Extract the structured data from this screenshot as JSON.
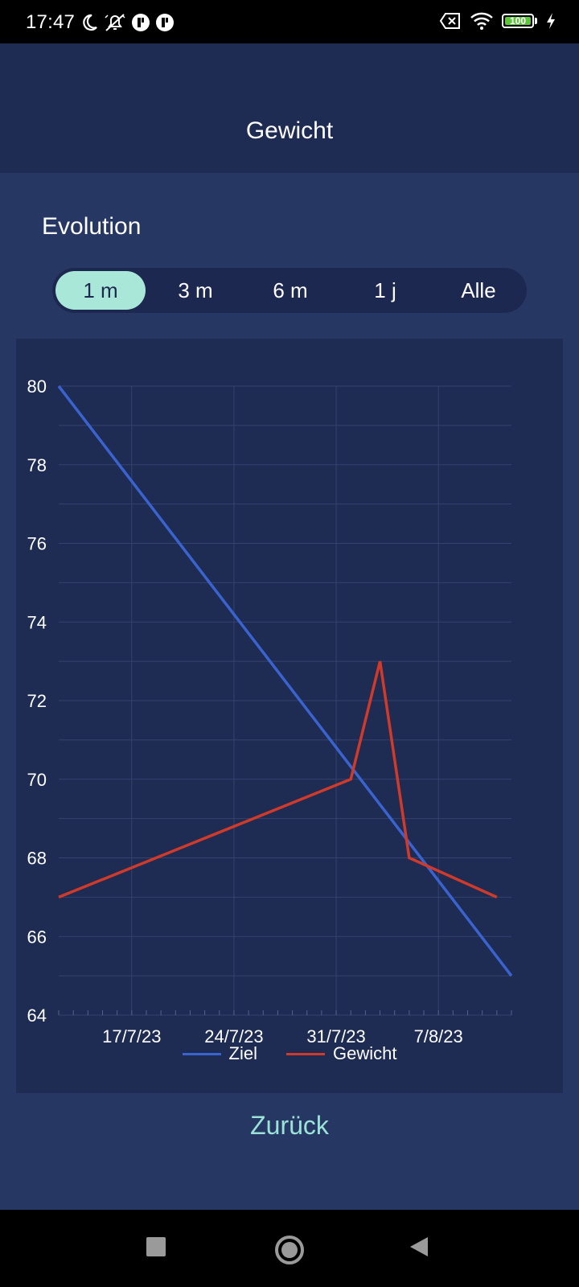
{
  "status_bar": {
    "time": "17:47",
    "left_icons": [
      "moon-icon",
      "bell-off-icon",
      "app-notification-icon",
      "app-notification-icon"
    ],
    "right_icons": [
      "no-sim-icon",
      "wifi-icon",
      "battery-icon",
      "charging-icon"
    ],
    "battery_level": "100"
  },
  "header": {
    "title": "Gewicht"
  },
  "section": {
    "title": "Evolution"
  },
  "range_selector": {
    "options": [
      "1 m",
      "3 m",
      "6 m",
      "1 j",
      "Alle"
    ],
    "selected": "1 m"
  },
  "chart_data": {
    "type": "line",
    "title": "",
    "xlabel": "",
    "ylabel": "",
    "ylim": [
      64,
      80
    ],
    "y_ticks": [
      "80",
      "78",
      "76",
      "74",
      "72",
      "70",
      "68",
      "66",
      "64"
    ],
    "x_ticks": [
      "17/7/23",
      "24/7/23",
      "31/7/23",
      "7/8/23"
    ],
    "x_range": [
      "2023-07-12",
      "2023-08-12"
    ],
    "grid": true,
    "legend_position": "bottom",
    "series": [
      {
        "name": "Ziel",
        "color": "#3a63d0",
        "points": [
          {
            "x": "2023-07-12",
            "y": 80
          },
          {
            "x": "2023-08-12",
            "y": 65
          }
        ]
      },
      {
        "name": "Gewicht",
        "color": "#d03a2a",
        "points": [
          {
            "x": "2023-07-12",
            "y": 67
          },
          {
            "x": "2023-08-01",
            "y": 70
          },
          {
            "x": "2023-08-03",
            "y": 73
          },
          {
            "x": "2023-08-05",
            "y": 68
          },
          {
            "x": "2023-08-11",
            "y": 67
          }
        ]
      }
    ]
  },
  "footer": {
    "back_label": "Zurück"
  },
  "colors": {
    "header_bg": "#1e2b52",
    "content_bg": "#273764",
    "accent": "#a9e8d9",
    "back_text": "#9be3d6"
  },
  "nav_bar": {
    "icons": [
      "recent-apps-icon",
      "home-icon",
      "back-icon"
    ]
  }
}
